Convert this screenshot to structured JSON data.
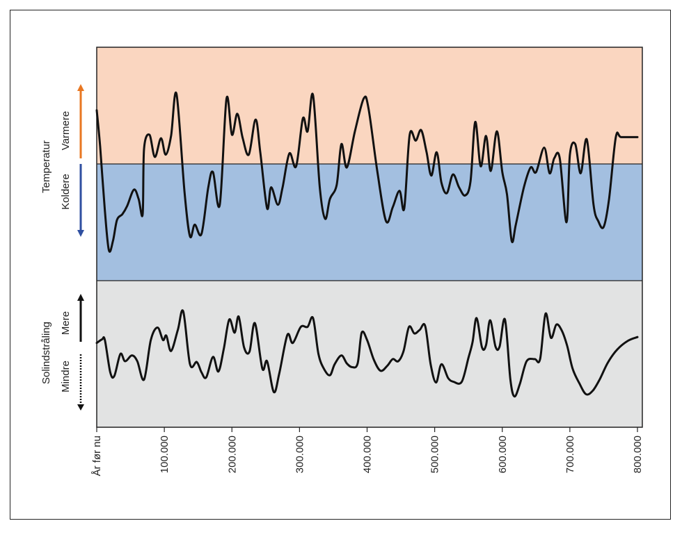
{
  "chart_data": {
    "type": "line",
    "x_axis": {
      "range": [
        0,
        800000
      ],
      "tick_values": [
        0,
        100000,
        200000,
        300000,
        400000,
        500000,
        600000,
        700000,
        800000
      ],
      "tick_labels": [
        "År før nu",
        "100.000",
        "200.000",
        "300.000",
        "400.000",
        "500.000",
        "600.000",
        "700.000",
        "800.000"
      ]
    },
    "panels": [
      {
        "label": "Temperatur",
        "up_label": "Varmere",
        "down_label": "Koldere",
        "colors": {
          "warm_band": "#fad6c0",
          "cold_band": "#a3bfe0",
          "up_arrow": "#e87722",
          "down_arrow": "#2f4fa0"
        },
        "units": "relative (+1 = top, -1 = bottom, 0 = boundary)",
        "series": [
          {
            "x": 0,
            "y": 0.46
          },
          {
            "x": 5000,
            "y": 0.15
          },
          {
            "x": 12000,
            "y": -0.4
          },
          {
            "x": 18000,
            "y": -0.74
          },
          {
            "x": 24000,
            "y": -0.66
          },
          {
            "x": 30000,
            "y": -0.48
          },
          {
            "x": 38000,
            "y": -0.43
          },
          {
            "x": 45000,
            "y": -0.36
          },
          {
            "x": 55000,
            "y": -0.22
          },
          {
            "x": 62000,
            "y": -0.3
          },
          {
            "x": 68000,
            "y": -0.43
          },
          {
            "x": 70000,
            "y": 0.13
          },
          {
            "x": 78000,
            "y": 0.25
          },
          {
            "x": 86000,
            "y": 0.06
          },
          {
            "x": 95000,
            "y": 0.22
          },
          {
            "x": 102000,
            "y": 0.08
          },
          {
            "x": 110000,
            "y": 0.24
          },
          {
            "x": 118000,
            "y": 0.6
          },
          {
            "x": 130000,
            "y": -0.25
          },
          {
            "x": 138000,
            "y": -0.62
          },
          {
            "x": 145000,
            "y": -0.52
          },
          {
            "x": 155000,
            "y": -0.6
          },
          {
            "x": 165000,
            "y": -0.2
          },
          {
            "x": 172000,
            "y": -0.07
          },
          {
            "x": 182000,
            "y": -0.35
          },
          {
            "x": 192000,
            "y": 0.56
          },
          {
            "x": 200000,
            "y": 0.25
          },
          {
            "x": 208000,
            "y": 0.43
          },
          {
            "x": 216000,
            "y": 0.22
          },
          {
            "x": 225000,
            "y": 0.08
          },
          {
            "x": 235000,
            "y": 0.38
          },
          {
            "x": 242000,
            "y": 0.1
          },
          {
            "x": 252000,
            "y": -0.38
          },
          {
            "x": 258000,
            "y": -0.2
          },
          {
            "x": 268000,
            "y": -0.35
          },
          {
            "x": 275000,
            "y": -0.2
          },
          {
            "x": 285000,
            "y": 0.09
          },
          {
            "x": 295000,
            "y": -0.02
          },
          {
            "x": 305000,
            "y": 0.39
          },
          {
            "x": 312000,
            "y": 0.28
          },
          {
            "x": 320000,
            "y": 0.59
          },
          {
            "x": 330000,
            "y": -0.2
          },
          {
            "x": 338000,
            "y": -0.47
          },
          {
            "x": 345000,
            "y": -0.3
          },
          {
            "x": 355000,
            "y": -0.18
          },
          {
            "x": 362000,
            "y": 0.17
          },
          {
            "x": 370000,
            "y": -0.03
          },
          {
            "x": 382000,
            "y": 0.28
          },
          {
            "x": 395000,
            "y": 0.56
          },
          {
            "x": 402000,
            "y": 0.48
          },
          {
            "x": 415000,
            "y": -0.06
          },
          {
            "x": 428000,
            "y": -0.49
          },
          {
            "x": 438000,
            "y": -0.37
          },
          {
            "x": 448000,
            "y": -0.23
          },
          {
            "x": 455000,
            "y": -0.38
          },
          {
            "x": 463000,
            "y": 0.25
          },
          {
            "x": 472000,
            "y": 0.2
          },
          {
            "x": 480000,
            "y": 0.29
          },
          {
            "x": 488000,
            "y": 0.1
          },
          {
            "x": 495000,
            "y": -0.1
          },
          {
            "x": 503000,
            "y": 0.1
          },
          {
            "x": 510000,
            "y": -0.16
          },
          {
            "x": 518000,
            "y": -0.25
          },
          {
            "x": 527000,
            "y": -0.09
          },
          {
            "x": 536000,
            "y": -0.2
          },
          {
            "x": 545000,
            "y": -0.27
          },
          {
            "x": 553000,
            "y": -0.15
          },
          {
            "x": 560000,
            "y": 0.36
          },
          {
            "x": 568000,
            "y": -0.02
          },
          {
            "x": 576000,
            "y": 0.24
          },
          {
            "x": 583000,
            "y": -0.06
          },
          {
            "x": 592000,
            "y": 0.28
          },
          {
            "x": 600000,
            "y": -0.07
          },
          {
            "x": 607000,
            "y": -0.26
          },
          {
            "x": 614000,
            "y": -0.66
          },
          {
            "x": 620000,
            "y": -0.52
          },
          {
            "x": 632000,
            "y": -0.2
          },
          {
            "x": 642000,
            "y": -0.03
          },
          {
            "x": 650000,
            "y": -0.07
          },
          {
            "x": 662000,
            "y": 0.14
          },
          {
            "x": 670000,
            "y": -0.08
          },
          {
            "x": 677000,
            "y": 0.05
          },
          {
            "x": 685000,
            "y": 0.05
          },
          {
            "x": 695000,
            "y": -0.5
          },
          {
            "x": 700000,
            "y": 0.08
          },
          {
            "x": 708000,
            "y": 0.17
          },
          {
            "x": 716000,
            "y": -0.08
          },
          {
            "x": 725000,
            "y": 0.21
          },
          {
            "x": 735000,
            "y": -0.35
          },
          {
            "x": 742000,
            "y": -0.49
          },
          {
            "x": 750000,
            "y": -0.54
          },
          {
            "x": 758000,
            "y": -0.3
          },
          {
            "x": 768000,
            "y": 0.23
          },
          {
            "x": 776000,
            "y": 0.23
          },
          {
            "x": 800000,
            "y": 0.23
          }
        ]
      },
      {
        "label": "Solindstråling",
        "up_label": "Mere",
        "down_label": "Mindre",
        "colors": {
          "band": "#e2e3e3",
          "arrows": "#111111"
        },
        "units": "relative (+1 = top, -1 = bottom)",
        "series": [
          {
            "x": 0,
            "y": 0.15
          },
          {
            "x": 8000,
            "y": 0.2
          },
          {
            "x": 12000,
            "y": 0.19
          },
          {
            "x": 20000,
            "y": -0.25
          },
          {
            "x": 26000,
            "y": -0.3
          },
          {
            "x": 35000,
            "y": 0.0
          },
          {
            "x": 42000,
            "y": -0.1
          },
          {
            "x": 52000,
            "y": -0.02
          },
          {
            "x": 60000,
            "y": -0.1
          },
          {
            "x": 70000,
            "y": -0.35
          },
          {
            "x": 80000,
            "y": 0.19
          },
          {
            "x": 90000,
            "y": 0.36
          },
          {
            "x": 98000,
            "y": 0.19
          },
          {
            "x": 103000,
            "y": 0.25
          },
          {
            "x": 110000,
            "y": 0.04
          },
          {
            "x": 120000,
            "y": 0.33
          },
          {
            "x": 128000,
            "y": 0.58
          },
          {
            "x": 138000,
            "y": -0.14
          },
          {
            "x": 148000,
            "y": -0.11
          },
          {
            "x": 155000,
            "y": -0.25
          },
          {
            "x": 162000,
            "y": -0.32
          },
          {
            "x": 172000,
            "y": -0.04
          },
          {
            "x": 180000,
            "y": -0.24
          },
          {
            "x": 188000,
            "y": 0.07
          },
          {
            "x": 196000,
            "y": 0.47
          },
          {
            "x": 204000,
            "y": 0.29
          },
          {
            "x": 210000,
            "y": 0.51
          },
          {
            "x": 218000,
            "y": 0.09
          },
          {
            "x": 226000,
            "y": 0.03
          },
          {
            "x": 234000,
            "y": 0.42
          },
          {
            "x": 245000,
            "y": -0.2
          },
          {
            "x": 252000,
            "y": -0.1
          },
          {
            "x": 262000,
            "y": -0.52
          },
          {
            "x": 270000,
            "y": -0.27
          },
          {
            "x": 282000,
            "y": 0.26
          },
          {
            "x": 290000,
            "y": 0.15
          },
          {
            "x": 302000,
            "y": 0.37
          },
          {
            "x": 312000,
            "y": 0.37
          },
          {
            "x": 320000,
            "y": 0.49
          },
          {
            "x": 328000,
            "y": 0.0
          },
          {
            "x": 336000,
            "y": -0.2
          },
          {
            "x": 345000,
            "y": -0.29
          },
          {
            "x": 352000,
            "y": -0.14
          },
          {
            "x": 362000,
            "y": -0.02
          },
          {
            "x": 370000,
            "y": -0.13
          },
          {
            "x": 378000,
            "y": -0.18
          },
          {
            "x": 386000,
            "y": -0.13
          },
          {
            "x": 392000,
            "y": 0.29
          },
          {
            "x": 400000,
            "y": 0.19
          },
          {
            "x": 410000,
            "y": -0.08
          },
          {
            "x": 420000,
            "y": -0.23
          },
          {
            "x": 430000,
            "y": -0.16
          },
          {
            "x": 438000,
            "y": -0.07
          },
          {
            "x": 446000,
            "y": -0.1
          },
          {
            "x": 454000,
            "y": 0.04
          },
          {
            "x": 462000,
            "y": 0.37
          },
          {
            "x": 470000,
            "y": 0.28
          },
          {
            "x": 478000,
            "y": 0.33
          },
          {
            "x": 486000,
            "y": 0.38
          },
          {
            "x": 494000,
            "y": -0.14
          },
          {
            "x": 502000,
            "y": -0.39
          },
          {
            "x": 510000,
            "y": -0.14
          },
          {
            "x": 520000,
            "y": -0.33
          },
          {
            "x": 528000,
            "y": -0.38
          },
          {
            "x": 540000,
            "y": -0.38
          },
          {
            "x": 550000,
            "y": -0.05
          },
          {
            "x": 556000,
            "y": 0.16
          },
          {
            "x": 562000,
            "y": 0.49
          },
          {
            "x": 570000,
            "y": 0.09
          },
          {
            "x": 576000,
            "y": 0.12
          },
          {
            "x": 582000,
            "y": 0.46
          },
          {
            "x": 590000,
            "y": 0.1
          },
          {
            "x": 596000,
            "y": 0.1
          },
          {
            "x": 604000,
            "y": 0.47
          },
          {
            "x": 612000,
            "y": -0.35
          },
          {
            "x": 618000,
            "y": -0.58
          },
          {
            "x": 626000,
            "y": -0.41
          },
          {
            "x": 636000,
            "y": -0.1
          },
          {
            "x": 648000,
            "y": -0.07
          },
          {
            "x": 656000,
            "y": -0.07
          },
          {
            "x": 664000,
            "y": 0.55
          },
          {
            "x": 672000,
            "y": 0.22
          },
          {
            "x": 680000,
            "y": 0.4
          },
          {
            "x": 688000,
            "y": 0.32
          },
          {
            "x": 696000,
            "y": 0.11
          },
          {
            "x": 704000,
            "y": -0.2
          },
          {
            "x": 714000,
            "y": -0.4
          },
          {
            "x": 724000,
            "y": -0.55
          },
          {
            "x": 734000,
            "y": -0.5
          },
          {
            "x": 744000,
            "y": -0.35
          },
          {
            "x": 756000,
            "y": -0.12
          },
          {
            "x": 770000,
            "y": 0.06
          },
          {
            "x": 786000,
            "y": 0.18
          },
          {
            "x": 800000,
            "y": 0.23
          }
        ]
      }
    ]
  }
}
